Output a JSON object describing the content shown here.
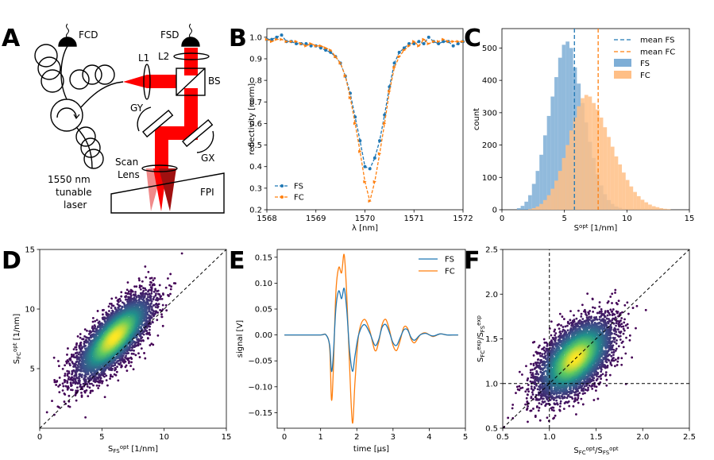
{
  "panel_letters": [
    "A",
    "B",
    "C",
    "D",
    "E",
    "F"
  ],
  "colors": {
    "fs": "#1f77b4",
    "fc": "#ff7f0e",
    "laser": "#ff0000",
    "hist_fs": "#7eaed6",
    "hist_fc": "#ffbf86"
  },
  "diagram": {
    "labels": {
      "fcd": "FCD",
      "fsd": "FSD",
      "l1": "L1",
      "l2": "L2",
      "bs": "BS",
      "gy": "GY",
      "gx": "GX",
      "scan1": "Scan",
      "scan2": "Lens",
      "fpi": "FPI",
      "laser1": "1550 nm",
      "laser2": "tunable",
      "laser3": "laser"
    }
  },
  "chart_data": [
    {
      "panel": "B",
      "type": "line",
      "xlabel": "λ [nm]",
      "ylabel": "reflectivity [norm]",
      "xlim": [
        1568,
        1572
      ],
      "ylim": [
        0.2,
        1.04
      ],
      "xticks": [
        1568,
        1569,
        1570,
        1571,
        1572
      ],
      "yticks": [
        0.2,
        0.3,
        0.4,
        0.5,
        0.6,
        0.7,
        0.8,
        0.9,
        1.0
      ],
      "ytick_labels": [
        "0.2",
        "0.3",
        "0.4",
        "0.5",
        "0.6",
        "0.7",
        "0.8",
        "0.9",
        "1.0"
      ],
      "legend": "lower-left",
      "series": [
        {
          "name": "FS",
          "x": [
            1568.0,
            1568.1,
            1568.2,
            1568.3,
            1568.4,
            1568.5,
            1568.6,
            1568.7,
            1568.8,
            1568.9,
            1569.0,
            1569.1,
            1569.2,
            1569.3,
            1569.4,
            1569.5,
            1569.6,
            1569.7,
            1569.8,
            1569.9,
            1570.0,
            1570.1,
            1570.2,
            1570.3,
            1570.4,
            1570.5,
            1570.6,
            1570.7,
            1570.8,
            1570.9,
            1571.0,
            1571.1,
            1571.2,
            1571.3,
            1571.4,
            1571.5,
            1571.6,
            1571.7,
            1571.8,
            1571.9,
            1572.0
          ],
          "y": [
            0.99,
            0.99,
            1.0,
            1.01,
            0.98,
            0.98,
            0.97,
            0.97,
            0.97,
            0.96,
            0.96,
            0.95,
            0.94,
            0.93,
            0.91,
            0.88,
            0.82,
            0.74,
            0.63,
            0.52,
            0.4,
            0.39,
            0.44,
            0.52,
            0.64,
            0.77,
            0.88,
            0.93,
            0.95,
            0.97,
            0.97,
            0.98,
            0.97,
            1.0,
            0.98,
            0.97,
            0.98,
            0.98,
            0.96,
            0.97,
            0.98
          ]
        },
        {
          "name": "FC",
          "x": [
            1568.0,
            1568.1,
            1568.2,
            1568.3,
            1568.4,
            1568.5,
            1568.6,
            1568.7,
            1568.8,
            1568.9,
            1569.0,
            1569.1,
            1569.2,
            1569.3,
            1569.4,
            1569.5,
            1569.6,
            1569.7,
            1569.8,
            1569.9,
            1570.0,
            1570.1,
            1570.2,
            1570.3,
            1570.4,
            1570.5,
            1570.6,
            1570.7,
            1570.8,
            1570.9,
            1571.0,
            1571.1,
            1571.2,
            1571.3,
            1571.4,
            1571.5,
            1571.6,
            1571.7,
            1571.8,
            1571.9,
            1572.0
          ],
          "y": [
            0.99,
            0.98,
            0.99,
            0.99,
            0.98,
            0.98,
            0.98,
            0.97,
            0.96,
            0.97,
            0.96,
            0.96,
            0.95,
            0.94,
            0.91,
            0.88,
            0.82,
            0.72,
            0.6,
            0.47,
            0.33,
            0.24,
            0.33,
            0.46,
            0.6,
            0.75,
            0.86,
            0.91,
            0.94,
            0.96,
            0.98,
            0.96,
            0.99,
            0.97,
            0.98,
            0.98,
            0.99,
            0.98,
            0.98,
            0.98,
            0.98
          ]
        }
      ]
    },
    {
      "panel": "C",
      "type": "histogram",
      "xlabel": "S^opt [1/nm]",
      "ylabel": "count",
      "xlim": [
        0,
        15
      ],
      "ylim": [
        0,
        560
      ],
      "xticks": [
        0,
        5,
        10,
        15
      ],
      "yticks": [
        0,
        100,
        200,
        300,
        400,
        500
      ],
      "bin_width": 0.3,
      "bin_start": 1.2,
      "legend": "top-right",
      "series": [
        {
          "name": "FS",
          "counts": [
            5,
            12,
            25,
            45,
            80,
            120,
            170,
            230,
            290,
            350,
            410,
            470,
            510,
            520,
            500,
            440,
            390,
            330,
            270,
            210,
            160,
            110,
            75,
            48,
            30,
            18,
            10,
            6,
            3,
            2
          ]
        },
        {
          "name": "FC",
          "counts": [
            2,
            5,
            10,
            18,
            30,
            45,
            65,
            90,
            120,
            160,
            200,
            245,
            285,
            320,
            345,
            355,
            350,
            330,
            310,
            285,
            255,
            225,
            195,
            165,
            140,
            115,
            92,
            72,
            55,
            42,
            31,
            23,
            16,
            11,
            8,
            5,
            3,
            2
          ]
        }
      ],
      "means": [
        {
          "name": "mean FS",
          "value": 5.8
        },
        {
          "name": "mean FC",
          "value": 7.7
        }
      ],
      "legend_labels": [
        "mean FS",
        "mean FC",
        "FS",
        "FC"
      ]
    },
    {
      "panel": "D",
      "type": "scatter",
      "xlabel": "S_FS^opt [1/nm]",
      "ylabel": "S_FC^opt [1/nm]",
      "xlim": [
        0,
        15
      ],
      "ylim": [
        0,
        15
      ],
      "xticks": [
        0,
        5,
        10,
        15
      ],
      "yticks": [
        5,
        10,
        15
      ],
      "center": [
        6.0,
        7.6
      ],
      "spread": [
        1.5,
        1.7
      ],
      "correlation": 0.75,
      "n_points": 5000,
      "reference_line": "y = x"
    },
    {
      "panel": "E",
      "type": "line",
      "xlabel": "time [μs]",
      "ylabel": "signal [V]",
      "xlim": [
        -0.2,
        5.0
      ],
      "ylim": [
        -0.18,
        0.165
      ],
      "xticks": [
        0,
        1,
        2,
        3,
        4,
        5
      ],
      "yticks": [
        -0.15,
        -0.1,
        -0.05,
        0.0,
        0.05,
        0.1,
        0.15
      ],
      "ytick_labels": [
        "−0.15",
        "−0.10",
        "−0.05",
        "0.00",
        "0.05",
        "0.10",
        "0.15"
      ],
      "legend": "top-right",
      "series": [
        {
          "name": "FS",
          "x": [
            0,
            0.5,
            1.0,
            1.15,
            1.25,
            1.3,
            1.35,
            1.42,
            1.5,
            1.58,
            1.65,
            1.72,
            1.8,
            1.88,
            1.95,
            2.05,
            2.2,
            2.35,
            2.5,
            2.6,
            2.7,
            2.8,
            2.9,
            3.0,
            3.1,
            3.2,
            3.3,
            3.4,
            3.5,
            3.6,
            3.75,
            3.9,
            4.1,
            4.3,
            4.5,
            4.7,
            4.8
          ],
          "y": [
            0,
            0,
            0,
            0,
            -0.02,
            -0.07,
            -0.04,
            0.05,
            0.085,
            0.07,
            0.09,
            0.05,
            -0.03,
            -0.07,
            -0.04,
            0.0,
            0.02,
            0.005,
            -0.02,
            -0.01,
            0.015,
            0.02,
            0.005,
            -0.015,
            -0.02,
            -0.005,
            0.01,
            0.01,
            -0.005,
            -0.01,
            0,
            0.003,
            -0.002,
            0.002,
            0,
            0,
            0
          ]
        },
        {
          "name": "FC",
          "x": [
            0,
            0.5,
            1.0,
            1.15,
            1.25,
            1.3,
            1.35,
            1.42,
            1.5,
            1.58,
            1.65,
            1.72,
            1.8,
            1.88,
            1.95,
            2.05,
            2.2,
            2.35,
            2.5,
            2.6,
            2.7,
            2.8,
            2.9,
            3.0,
            3.1,
            3.2,
            3.3,
            3.4,
            3.5,
            3.6,
            3.75,
            3.9,
            4.1,
            4.3,
            4.5,
            4.7,
            4.8
          ],
          "y": [
            0,
            0,
            0,
            0,
            -0.025,
            -0.125,
            -0.07,
            0.08,
            0.13,
            0.12,
            0.155,
            0.08,
            -0.06,
            -0.17,
            -0.09,
            0.0,
            0.03,
            0.01,
            -0.03,
            -0.015,
            0.02,
            0.03,
            0.01,
            -0.02,
            -0.03,
            -0.01,
            0.015,
            0.013,
            -0.008,
            -0.015,
            0,
            0.004,
            -0.003,
            0.002,
            0,
            0,
            0
          ]
        }
      ]
    },
    {
      "panel": "F",
      "type": "scatter",
      "xlabel": "S_FC^opt/S_FS^opt",
      "ylabel": "S_FC^exp/S_FS^exp",
      "xlim": [
        0.5,
        2.5
      ],
      "ylim": [
        0.5,
        2.5
      ],
      "xticks": [
        0.5,
        1.0,
        1.5,
        2.0,
        2.5
      ],
      "yticks": [
        0.5,
        1.0,
        1.5,
        2.0,
        2.5
      ],
      "tick_labels": [
        "0.5",
        "1.0",
        "1.5",
        "2.0",
        "2.5"
      ],
      "center": [
        1.28,
        1.28
      ],
      "spread": [
        0.2,
        0.22
      ],
      "correlation": 0.55,
      "n_points": 5000,
      "reference_lines": [
        "y = x",
        "x = 1",
        "y = 1"
      ]
    }
  ]
}
